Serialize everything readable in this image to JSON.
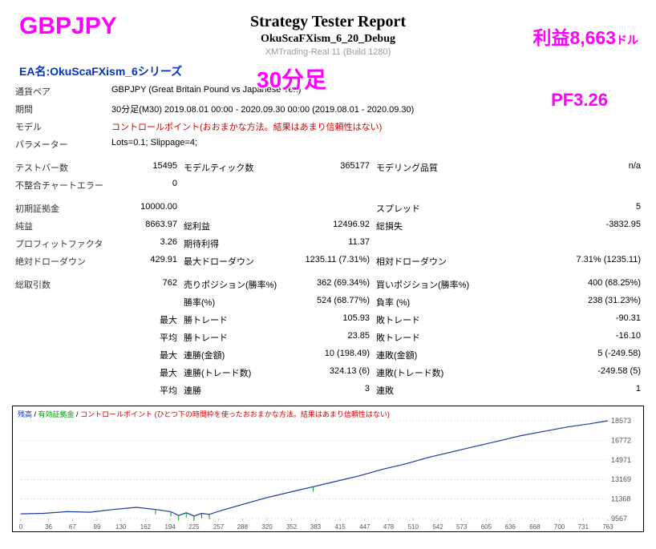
{
  "header": {
    "title": "Strategy Tester Report",
    "subtitle": "OkuScaFXism_6_20_Debug",
    "broker": "XMTrading-Real 11 (Build 1280)"
  },
  "ea_name": "EA名:OkuScaFXism_6シリーズ",
  "overlays": {
    "gbpjpy": "GBPJPY",
    "profit_label": "利益8,663",
    "profit_unit": "ドル",
    "timeframe": "30分足",
    "pf": "PF3.26"
  },
  "rows": {
    "pair_label": "通貨ペア",
    "pair_value": "GBPJPY (Great Britain Pound vs Japanese Yen)",
    "period_label": "期間",
    "period_value": "30分足(M30) 2019.08.01 00:00 - 2020.09.30 00:00 (2019.08.01 - 2020.09.30)",
    "model_label": "モデル",
    "model_value": "コントロールポイント(おおまかな方法。結果はあまり信頼性はない)",
    "param_label": "パラメーター",
    "param_value": "Lots=0.1; Slippage=4;",
    "testbars_label": "テストバー数",
    "testbars_value": "15495",
    "ticks_label": "モデルティック数",
    "ticks_value": "365177",
    "quality_label": "モデリング品質",
    "quality_value": "n/a",
    "mismatch_label": "不整合チャートエラー",
    "mismatch_value": "0",
    "deposit_label": "初期証拠金",
    "deposit_value": "10000.00",
    "spread_label": "スプレッド",
    "spread_value": "5",
    "netprofit_label": "純益",
    "netprofit_value": "8663.97",
    "grossprofit_label": "総利益",
    "grossprofit_value": "12496.92",
    "grossloss_label": "総損失",
    "grossloss_value": "-3832.95",
    "pf_label": "プロフィットファクタ",
    "pf_value": "3.26",
    "expected_label": "期待利得",
    "expected_value": "11.37",
    "absdd_label": "絶対ドローダウン",
    "absdd_value": "429.91",
    "maxdd_label": "最大ドローダウン",
    "maxdd_value": "1235.11 (7.31%)",
    "reldd_label": "相対ドローダウン",
    "reldd_value": "7.31% (1235.11)",
    "trades_label": "総取引数",
    "trades_value": "762",
    "short_label": "売りポジション(勝率%)",
    "short_value": "362 (69.34%)",
    "long_label": "買いポジション(勝率%)",
    "long_value": "400 (68.25%)",
    "winrate_label": "勝率(%)",
    "winrate_value": "524 (68.77%)",
    "lossrate_label": "負率 (%)",
    "lossrate_value": "238 (31.23%)",
    "max_label": "最大",
    "avg_label": "平均",
    "wintrade_label": "勝トレード",
    "wintrade_value": "105.93",
    "losstrade_label": "敗トレード",
    "losstrade_value": "-90.31",
    "avgwin_value": "23.85",
    "avgloss_value": "-16.10",
    "conswin_label": "連勝(金額)",
    "conswin_value": "10 (198.49)",
    "consloss_label": "連敗(金額)",
    "consloss_value": "5 (-249.58)",
    "conswintrades_label": "連勝(トレード数)",
    "conswintrades_value": "324.13 (6)",
    "conslosstrades_label": "連敗(トレード数)",
    "conslosstrades_value": "-249.58 (5)",
    "avgconswin_label": "連勝",
    "avgconswin_value": "3",
    "avgconsloss_label": "連敗",
    "avgconsloss_value": "1"
  },
  "chart": {
    "legend_balance": "残高",
    "legend_equity": "有効証拠金",
    "legend_control": "コントロールポイント (ひとつ下の時間枠を使ったおおまかな方法。結果はあまり信頼性はない)",
    "x_ticks": [
      "0",
      "36",
      "67",
      "99",
      "130",
      "162",
      "194",
      "225",
      "257",
      "288",
      "320",
      "352",
      "383",
      "415",
      "447",
      "478",
      "510",
      "542",
      "573",
      "605",
      "636",
      "668",
      "700",
      "731",
      "763"
    ],
    "y_ticks": [
      "18573",
      "16772",
      "14971",
      "13169",
      "11368",
      "9567"
    ],
    "y_min": 9567,
    "y_max": 18573,
    "equity_points": [
      [
        0,
        10000
      ],
      [
        30,
        10050
      ],
      [
        60,
        10200
      ],
      [
        90,
        10150
      ],
      [
        120,
        10400
      ],
      [
        150,
        10600
      ],
      [
        175,
        10400
      ],
      [
        195,
        10200
      ],
      [
        205,
        9850
      ],
      [
        215,
        10100
      ],
      [
        225,
        9800
      ],
      [
        235,
        10050
      ],
      [
        245,
        9950
      ],
      [
        260,
        10300
      ],
      [
        280,
        10700
      ],
      [
        300,
        11100
      ],
      [
        320,
        11500
      ],
      [
        350,
        12000
      ],
      [
        380,
        12500
      ],
      [
        410,
        13000
      ],
      [
        440,
        13500
      ],
      [
        470,
        14100
      ],
      [
        500,
        14600
      ],
      [
        530,
        15200
      ],
      [
        560,
        15700
      ],
      [
        590,
        16200
      ],
      [
        620,
        16700
      ],
      [
        650,
        17200
      ],
      [
        680,
        17600
      ],
      [
        710,
        18000
      ],
      [
        740,
        18300
      ],
      [
        763,
        18573
      ]
    ],
    "colors": {
      "line": "#1a3aa0",
      "grid": "#cccccc",
      "axis_text": "#555555"
    }
  }
}
